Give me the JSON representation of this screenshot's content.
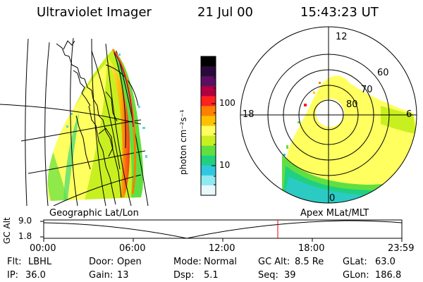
{
  "header": {
    "instrument": "Ultraviolet Imager",
    "date": "21 Jul 00",
    "time": "15:43:23 UT"
  },
  "panels": {
    "left_label": "Geographic Lat/Lon",
    "right_label": "Apex MLat/MLT"
  },
  "colorbar": {
    "unit_label": "photon cm⁻²s⁻¹",
    "tick_100": "100",
    "tick_10": "10",
    "colors": [
      "#000000",
      "#2a0a3a",
      "#5a1060",
      "#b00040",
      "#ff2020",
      "#ff8000",
      "#ffc000",
      "#ffff60",
      "#c8f020",
      "#60e040",
      "#20d080",
      "#30c8e0",
      "#90e8f0",
      "#e8f8fc"
    ]
  },
  "polar": {
    "mlt_12": "12",
    "mlt_18": "18",
    "mlt_6": "6",
    "mlt_0": "0",
    "lat_60": "60",
    "lat_70": "70",
    "lat_80": "80"
  },
  "altitude_strip": {
    "ylabel": "GC Alt",
    "y_top": "9.0",
    "y_bottom": "1.8",
    "ticks": [
      "00:00",
      "06:00",
      "12:00",
      "18:00",
      "23:59"
    ],
    "marker_color": "#e00000"
  },
  "status": {
    "flt_label": "Flt:",
    "flt_value": "LBHL",
    "ip_label": "IP:",
    "ip_value": "36.0",
    "door_label": "Door:",
    "door_value": "Open",
    "gain_label": "Gain:",
    "gain_value": "13",
    "mode_label": "Mode:",
    "mode_value": "Normal",
    "dsp_label": "Dsp:",
    "dsp_value": "5.1",
    "gcalt_label": "GC Alt:",
    "gcalt_value": "8.5 Re",
    "seq_label": "Seq:",
    "seq_value": "39",
    "glat_label": "GLat:",
    "glat_value": "63.0",
    "glon_label": "GLon:",
    "glon_value": "186.8"
  }
}
